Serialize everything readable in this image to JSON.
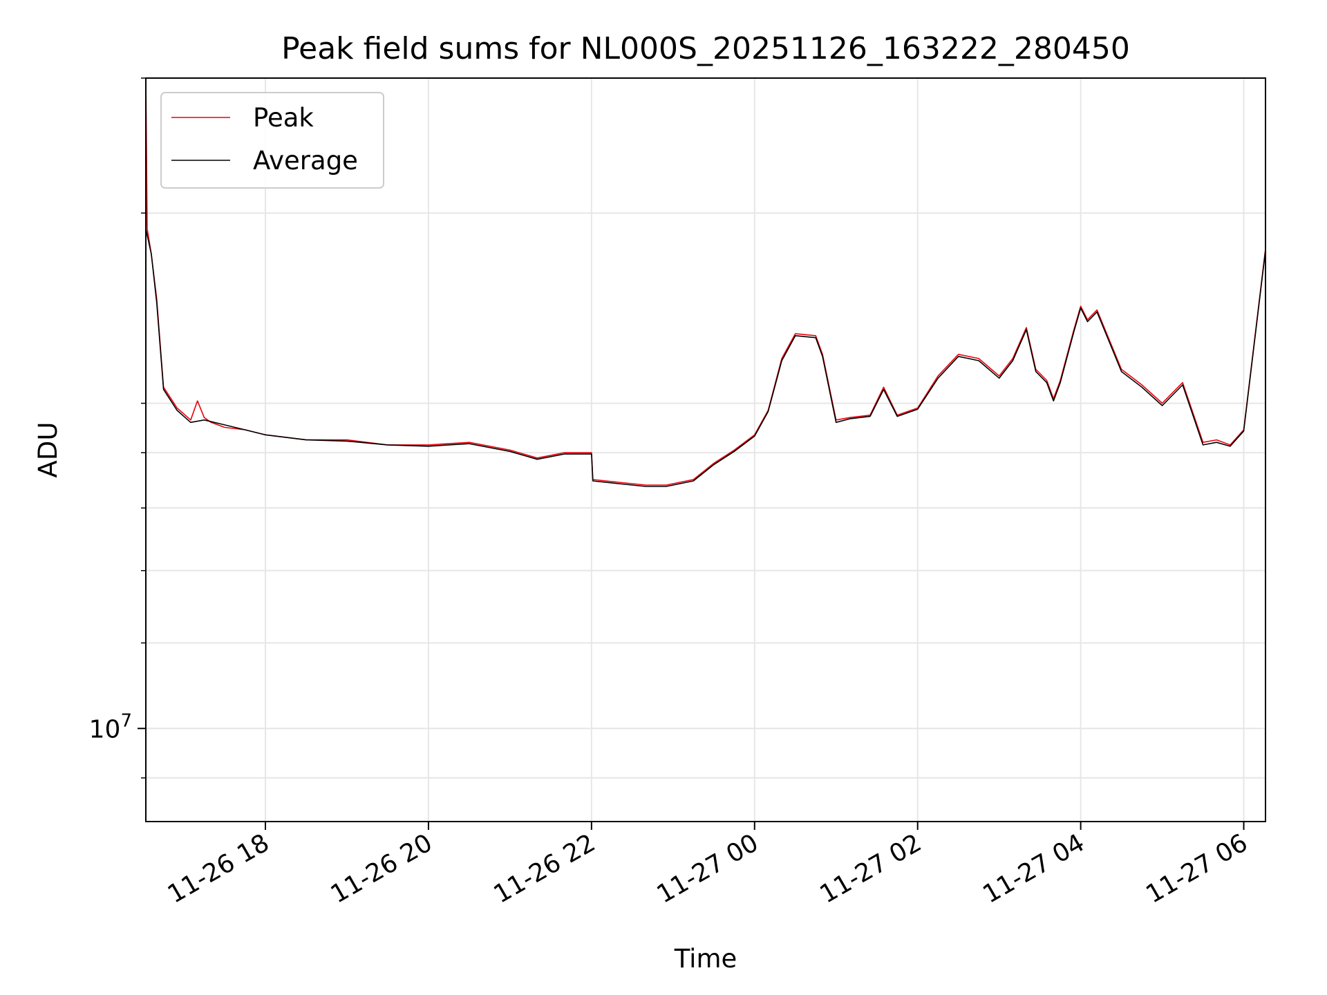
{
  "chart_data": {
    "type": "line",
    "title": "Peak field sums for NL000S_20251126_163222_280450",
    "xlabel": "Time",
    "ylabel": "ADU",
    "yscale": "log",
    "grid": true,
    "legend_position": "upper-left",
    "xlim": [
      "2025-11-26T16:32",
      "2025-11-27T06:16"
    ],
    "ylim": [
      8200000,
      40000000
    ],
    "x_ticks": [
      "11-26 18",
      "11-26 20",
      "11-26 22",
      "11-27 00",
      "11-27 02",
      "11-27 04",
      "11-27 06"
    ],
    "x_tick_values": [
      "2025-11-26T18:00",
      "2025-11-26T20:00",
      "2025-11-26T22:00",
      "2025-11-27T00:00",
      "2025-11-27T02:00",
      "2025-11-27T04:00",
      "2025-11-27T06:00"
    ],
    "y_ticks": [
      {
        "value": 10000000,
        "base": "10",
        "exp": "7"
      }
    ],
    "y_minor_ticks": [
      9000000,
      8000000,
      7000000,
      12000000,
      14000000,
      16000000,
      18000000,
      20000000,
      30000000,
      40000000
    ],
    "series": [
      {
        "name": "Peak",
        "color": "#e8000b",
        "x": [
          "2025-11-26T16:32",
          "2025-11-26T16:33",
          "2025-11-26T16:36",
          "2025-11-26T16:40",
          "2025-11-26T16:45",
          "2025-11-26T16:55",
          "2025-11-26T17:05",
          "2025-11-26T17:10",
          "2025-11-26T17:15",
          "2025-11-26T17:20",
          "2025-11-26T17:30",
          "2025-11-26T17:45",
          "2025-11-26T18:00",
          "2025-11-26T18:30",
          "2025-11-26T19:00",
          "2025-11-26T19:30",
          "2025-11-26T20:00",
          "2025-11-26T20:30",
          "2025-11-26T21:00",
          "2025-11-26T21:20",
          "2025-11-26T21:40",
          "2025-11-26T22:00",
          "2025-11-26T22:01",
          "2025-11-26T22:20",
          "2025-11-26T22:40",
          "2025-11-26T22:55",
          "2025-11-26T23:15",
          "2025-11-26T23:30",
          "2025-11-26T23:45",
          "2025-11-27T00:00",
          "2025-11-27T00:10",
          "2025-11-27T00:20",
          "2025-11-27T00:30",
          "2025-11-27T00:45",
          "2025-11-27T00:50",
          "2025-11-27T01:00",
          "2025-11-27T01:10",
          "2025-11-27T01:25",
          "2025-11-27T01:35",
          "2025-11-27T01:45",
          "2025-11-27T02:00",
          "2025-11-27T02:15",
          "2025-11-27T02:30",
          "2025-11-27T02:45",
          "2025-11-27T03:00",
          "2025-11-27T03:10",
          "2025-11-27T03:20",
          "2025-11-27T03:27",
          "2025-11-27T03:35",
          "2025-11-27T03:40",
          "2025-11-27T03:45",
          "2025-11-27T03:55",
          "2025-11-27T04:00",
          "2025-11-27T04:05",
          "2025-11-27T04:12",
          "2025-11-27T04:30",
          "2025-11-27T04:45",
          "2025-11-27T05:00",
          "2025-11-27T05:15",
          "2025-11-27T05:30",
          "2025-11-27T05:40",
          "2025-11-27T05:50",
          "2025-11-27T06:00",
          "2025-11-27T06:16"
        ],
        "values": [
          40000000,
          29000000,
          27500000,
          25000000,
          20700000,
          19800000,
          19300000,
          20100000,
          19400000,
          19200000,
          19000000,
          18900000,
          18700000,
          18500000,
          18500000,
          18300000,
          18300000,
          18400000,
          18100000,
          17800000,
          18000000,
          18000000,
          17000000,
          16900000,
          16800000,
          16800000,
          17000000,
          17600000,
          18100000,
          18700000,
          19700000,
          22000000,
          23200000,
          23100000,
          22200000,
          19300000,
          19400000,
          19500000,
          20700000,
          19500000,
          19800000,
          21200000,
          22200000,
          22000000,
          21200000,
          22000000,
          23500000,
          21500000,
          21000000,
          20200000,
          21000000,
          23400000,
          24600000,
          23900000,
          24400000,
          21500000,
          20800000,
          20000000,
          20900000,
          18400000,
          18500000,
          18300000,
          18900000,
          27800000
        ]
      },
      {
        "name": "Average",
        "color": "#000000",
        "x": [
          "2025-11-26T16:32",
          "2025-11-26T16:36",
          "2025-11-26T16:40",
          "2025-11-26T16:45",
          "2025-11-26T16:55",
          "2025-11-26T17:05",
          "2025-11-26T17:15",
          "2025-11-26T17:30",
          "2025-11-26T17:45",
          "2025-11-26T18:00",
          "2025-11-26T18:30",
          "2025-11-26T19:00",
          "2025-11-26T19:30",
          "2025-11-26T20:00",
          "2025-11-26T20:30",
          "2025-11-26T21:00",
          "2025-11-26T21:20",
          "2025-11-26T21:40",
          "2025-11-26T22:00",
          "2025-11-26T22:01",
          "2025-11-26T22:20",
          "2025-11-26T22:40",
          "2025-11-26T22:55",
          "2025-11-26T23:15",
          "2025-11-26T23:30",
          "2025-11-26T23:45",
          "2025-11-27T00:00",
          "2025-11-27T00:10",
          "2025-11-27T00:20",
          "2025-11-27T00:30",
          "2025-11-27T00:45",
          "2025-11-27T00:50",
          "2025-11-27T01:00",
          "2025-11-27T01:10",
          "2025-11-27T01:25",
          "2025-11-27T01:35",
          "2025-11-27T01:45",
          "2025-11-27T02:00",
          "2025-11-27T02:15",
          "2025-11-27T02:30",
          "2025-11-27T02:45",
          "2025-11-27T03:00",
          "2025-11-27T03:10",
          "2025-11-27T03:20",
          "2025-11-27T03:27",
          "2025-11-27T03:35",
          "2025-11-27T03:40",
          "2025-11-27T03:45",
          "2025-11-27T03:55",
          "2025-11-27T04:00",
          "2025-11-27T04:05",
          "2025-11-27T04:12",
          "2025-11-27T04:30",
          "2025-11-27T04:45",
          "2025-11-27T05:00",
          "2025-11-27T05:15",
          "2025-11-27T05:30",
          "2025-11-27T05:40",
          "2025-11-27T05:50",
          "2025-11-27T06:00",
          "2025-11-27T06:16"
        ],
        "values": [
          29000000,
          27500000,
          24800000,
          20600000,
          19700000,
          19200000,
          19300000,
          19100000,
          18900000,
          18700000,
          18500000,
          18450000,
          18300000,
          18250000,
          18350000,
          18050000,
          17750000,
          17950000,
          17950000,
          16950000,
          16850000,
          16750000,
          16750000,
          16950000,
          17550000,
          18050000,
          18650000,
          19650000,
          21900000,
          23100000,
          23000000,
          22100000,
          19200000,
          19350000,
          19450000,
          20600000,
          19450000,
          19750000,
          21100000,
          22100000,
          21900000,
          21100000,
          21900000,
          23400000,
          21400000,
          20900000,
          20100000,
          20900000,
          23300000,
          24500000,
          23800000,
          24300000,
          21400000,
          20700000,
          19900000,
          20800000,
          18300000,
          18400000,
          18250000,
          18850000,
          27700000
        ]
      }
    ]
  }
}
